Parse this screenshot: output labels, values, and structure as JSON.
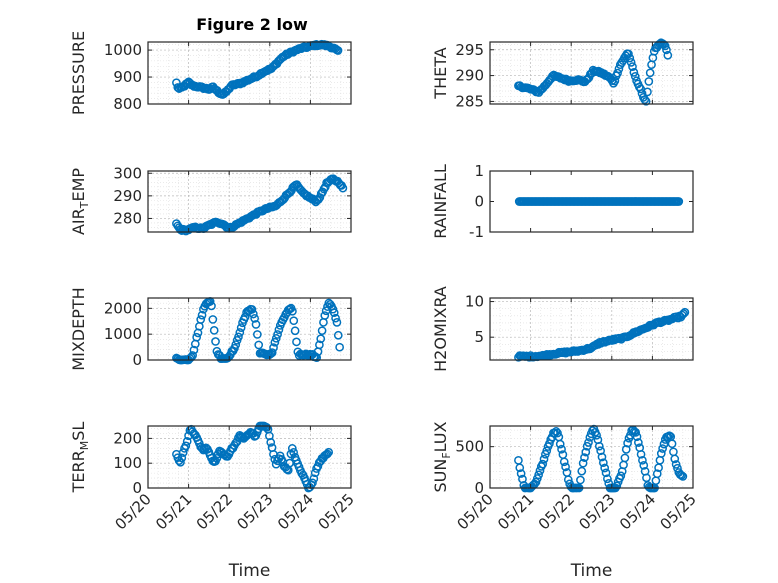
{
  "title": "Figure 2 low",
  "colors": {
    "marker": "#0072bd",
    "axes": "#262626",
    "grid": "#b8b8b8"
  },
  "chart_data": [
    {
      "type": "scatter",
      "name": "pressure",
      "xlabel": "",
      "ylabel": "PRESSURE",
      "x_unit": "days since 05/20",
      "xlim": [
        0,
        5
      ],
      "ylim": [
        800,
        1030
      ],
      "yticks": [
        800,
        900,
        1000
      ],
      "ytick_labels": [
        "800",
        "900",
        "1000"
      ],
      "xtick_labels": [],
      "grid": true,
      "keys": [
        [
          0.7,
          878
        ],
        [
          0.75,
          855
        ],
        [
          0.85,
          862
        ],
        [
          1.0,
          880
        ],
        [
          1.1,
          868
        ],
        [
          1.3,
          862
        ],
        [
          1.5,
          855
        ],
        [
          1.6,
          862
        ],
        [
          1.75,
          842
        ],
        [
          1.85,
          835
        ],
        [
          1.95,
          848
        ],
        [
          2.05,
          868
        ],
        [
          2.3,
          878
        ],
        [
          2.55,
          895
        ],
        [
          2.7,
          905
        ],
        [
          2.85,
          920
        ],
        [
          3.05,
          932
        ],
        [
          3.25,
          965
        ],
        [
          3.35,
          978
        ],
        [
          3.5,
          990
        ],
        [
          3.65,
          1000
        ],
        [
          3.8,
          1008
        ],
        [
          3.95,
          1012
        ],
        [
          4.1,
          1018
        ],
        [
          4.3,
          1020
        ],
        [
          4.45,
          1015
        ],
        [
          4.6,
          1005
        ],
        [
          4.68,
          995
        ]
      ]
    },
    {
      "type": "scatter",
      "name": "theta",
      "xlabel": "",
      "ylabel": "THETA",
      "x_unit": "days since 05/20",
      "xlim": [
        0,
        5
      ],
      "ylim": [
        284.5,
        296.5
      ],
      "yticks": [
        285,
        290,
        295
      ],
      "ytick_labels": [
        "285",
        "290",
        "295"
      ],
      "xtick_labels": [],
      "grid": true,
      "keys": [
        [
          0.7,
          288
        ],
        [
          0.95,
          287.5
        ],
        [
          1.2,
          286.8
        ],
        [
          1.35,
          288
        ],
        [
          1.55,
          290
        ],
        [
          1.75,
          289.5
        ],
        [
          1.95,
          289
        ],
        [
          2.15,
          289.2
        ],
        [
          2.35,
          288.8
        ],
        [
          2.55,
          291
        ],
        [
          2.75,
          290.5
        ],
        [
          2.95,
          289.6
        ],
        [
          3.05,
          288.5
        ],
        [
          3.2,
          292
        ],
        [
          3.4,
          294.5
        ],
        [
          3.5,
          292
        ],
        [
          3.6,
          289
        ],
        [
          3.7,
          287.5
        ],
        [
          3.8,
          285.5
        ],
        [
          3.85,
          285
        ],
        [
          3.95,
          291
        ],
        [
          4.05,
          295
        ],
        [
          4.2,
          296.2
        ],
        [
          4.3,
          296
        ],
        [
          4.38,
          294
        ]
      ]
    },
    {
      "type": "scatter",
      "name": "air_temp",
      "xlabel": "",
      "ylabel": "AIR_TEMP",
      "x_unit": "days since 05/20",
      "xlim": [
        0,
        5
      ],
      "ylim": [
        274,
        301
      ],
      "yticks": [
        280,
        290,
        300
      ],
      "ytick_labels": [
        "280",
        "290",
        "300"
      ],
      "xtick_labels": [],
      "grid": true,
      "keys": [
        [
          0.7,
          277.5
        ],
        [
          0.8,
          275
        ],
        [
          0.95,
          274.8
        ],
        [
          1.15,
          276
        ],
        [
          1.35,
          275.5
        ],
        [
          1.5,
          277
        ],
        [
          1.7,
          278.5
        ],
        [
          1.85,
          277.5
        ],
        [
          2.0,
          275.5
        ],
        [
          2.15,
          277
        ],
        [
          2.35,
          279
        ],
        [
          2.55,
          281
        ],
        [
          2.75,
          283
        ],
        [
          2.95,
          284.5
        ],
        [
          3.15,
          285.5
        ],
        [
          3.35,
          289
        ],
        [
          3.5,
          292
        ],
        [
          3.65,
          295
        ],
        [
          3.8,
          291.5
        ],
        [
          4.0,
          289
        ],
        [
          4.15,
          287.5
        ],
        [
          4.25,
          290
        ],
        [
          4.4,
          295.5
        ],
        [
          4.55,
          297.5
        ],
        [
          4.7,
          296
        ],
        [
          4.8,
          293.5
        ]
      ]
    },
    {
      "type": "scatter",
      "name": "rainfall",
      "xlabel": "",
      "ylabel": "RAINFALL",
      "x_unit": "days since 05/20",
      "xlim": [
        0,
        5
      ],
      "ylim": [
        -1,
        1
      ],
      "yticks": [
        -1,
        0,
        1
      ],
      "ytick_labels": [
        "-1",
        "0",
        "1"
      ],
      "xtick_labels": [],
      "grid": false,
      "keys": [
        [
          0.72,
          0
        ],
        [
          4.65,
          0
        ]
      ]
    },
    {
      "type": "scatter",
      "name": "mixdepth",
      "xlabel": "",
      "ylabel": "MIXDEPTH",
      "x_unit": "days since 05/20",
      "xlim": [
        0,
        5
      ],
      "ylim": [
        0,
        2400
      ],
      "yticks": [
        0,
        1000,
        2000
      ],
      "ytick_labels": [
        "0",
        "1000",
        "2000"
      ],
      "xtick_labels": [],
      "grid": true,
      "keys": [
        [
          0.7,
          50
        ],
        [
          0.85,
          0
        ],
        [
          1.0,
          20
        ],
        [
          1.1,
          200
        ],
        [
          1.25,
          1200
        ],
        [
          1.35,
          1900
        ],
        [
          1.45,
          2250
        ],
        [
          1.55,
          2300
        ],
        [
          1.6,
          1500
        ],
        [
          1.7,
          300
        ],
        [
          1.8,
          80
        ],
        [
          1.95,
          60
        ],
        [
          2.15,
          500
        ],
        [
          2.3,
          1300
        ],
        [
          2.45,
          1900
        ],
        [
          2.55,
          2000
        ],
        [
          2.65,
          1500
        ],
        [
          2.75,
          300
        ],
        [
          2.9,
          200
        ],
        [
          3.05,
          250
        ],
        [
          3.15,
          800
        ],
        [
          3.3,
          1500
        ],
        [
          3.45,
          1900
        ],
        [
          3.55,
          2000
        ],
        [
          3.65,
          800
        ],
        [
          3.7,
          200
        ],
        [
          3.85,
          220
        ],
        [
          4.05,
          200
        ],
        [
          4.15,
          60
        ],
        [
          4.25,
          800
        ],
        [
          4.35,
          1700
        ],
        [
          4.45,
          2200
        ],
        [
          4.55,
          2000
        ],
        [
          4.65,
          1500
        ],
        [
          4.72,
          500
        ]
      ]
    },
    {
      "type": "scatter",
      "name": "h2omixra",
      "xlabel": "",
      "ylabel": "H2OMIXRA",
      "x_unit": "days since 05/20",
      "xlim": [
        0,
        5
      ],
      "ylim": [
        1.8,
        10.5
      ],
      "yticks": [
        5,
        10
      ],
      "ytick_labels": [
        "5",
        "10"
      ],
      "xtick_labels": [],
      "grid": true,
      "keys": [
        [
          0.7,
          2.3
        ],
        [
          1.0,
          2.3
        ],
        [
          1.3,
          2.4
        ],
        [
          1.6,
          2.7
        ],
        [
          1.9,
          2.9
        ],
        [
          2.2,
          3.1
        ],
        [
          2.5,
          3.5
        ],
        [
          2.7,
          4.2
        ],
        [
          3.0,
          4.6
        ],
        [
          3.3,
          4.9
        ],
        [
          3.55,
          5.6
        ],
        [
          3.75,
          6.1
        ],
        [
          3.95,
          6.6
        ],
        [
          4.15,
          7.1
        ],
        [
          4.35,
          7.3
        ],
        [
          4.55,
          7.7
        ],
        [
          4.7,
          7.9
        ],
        [
          4.8,
          8.4
        ]
      ]
    },
    {
      "type": "scatter",
      "name": "terr_msl",
      "xlabel": "Time",
      "ylabel": "TERR_MSL",
      "x_unit": "days since 05/20",
      "xlim": [
        0,
        5
      ],
      "ylim": [
        0,
        250
      ],
      "yticks": [
        0,
        100,
        200
      ],
      "ytick_labels": [
        "0",
        "100",
        "200"
      ],
      "xtick_labels": [
        "05/20",
        "05/21",
        "05/22",
        "05/23",
        "05/24",
        "05/25"
      ],
      "grid": true,
      "keys": [
        [
          0.7,
          135
        ],
        [
          0.8,
          100
        ],
        [
          0.88,
          150
        ],
        [
          0.95,
          180
        ],
        [
          1.05,
          240
        ],
        [
          1.15,
          215
        ],
        [
          1.25,
          185
        ],
        [
          1.35,
          150
        ],
        [
          1.45,
          165
        ],
        [
          1.55,
          120
        ],
        [
          1.65,
          100
        ],
        [
          1.75,
          150
        ],
        [
          1.85,
          140
        ],
        [
          1.95,
          125
        ],
        [
          2.05,
          155
        ],
        [
          2.15,
          175
        ],
        [
          2.25,
          210
        ],
        [
          2.35,
          200
        ],
        [
          2.45,
          215
        ],
        [
          2.55,
          225
        ],
        [
          2.65,
          205
        ],
        [
          2.75,
          250
        ],
        [
          2.85,
          250
        ],
        [
          2.95,
          245
        ],
        [
          3.05,
          165
        ],
        [
          3.15,
          95
        ],
        [
          3.25,
          130
        ],
        [
          3.35,
          90
        ],
        [
          3.45,
          70
        ],
        [
          3.55,
          160
        ],
        [
          3.65,
          110
        ],
        [
          3.75,
          70
        ],
        [
          3.85,
          40
        ],
        [
          3.95,
          0
        ],
        [
          4.05,
          20
        ],
        [
          4.15,
          80
        ],
        [
          4.25,
          110
        ],
        [
          4.35,
          130
        ],
        [
          4.45,
          145
        ]
      ]
    },
    {
      "type": "scatter",
      "name": "sun_flux",
      "xlabel": "Time",
      "ylabel": "SUN_FLUX",
      "x_unit": "days since 05/20",
      "xlim": [
        0,
        5
      ],
      "ylim": [
        0,
        750
      ],
      "yticks": [
        0,
        500
      ],
      "ytick_labels": [
        "0",
        "500"
      ],
      "xtick_labels": [
        "05/20",
        "05/21",
        "05/22",
        "05/23",
        "05/24",
        "05/25"
      ],
      "grid": true,
      "keys": [
        [
          0.7,
          330
        ],
        [
          0.78,
          150
        ],
        [
          0.85,
          0
        ],
        [
          1.0,
          0
        ],
        [
          1.12,
          60
        ],
        [
          1.3,
          300
        ],
        [
          1.45,
          530
        ],
        [
          1.55,
          650
        ],
        [
          1.65,
          700
        ],
        [
          1.75,
          500
        ],
        [
          1.85,
          280
        ],
        [
          1.95,
          60
        ],
        [
          2.0,
          0
        ],
        [
          2.2,
          0
        ],
        [
          2.3,
          330
        ],
        [
          2.45,
          600
        ],
        [
          2.55,
          720
        ],
        [
          2.65,
          600
        ],
        [
          2.8,
          300
        ],
        [
          2.95,
          0
        ],
        [
          3.1,
          0
        ],
        [
          3.25,
          180
        ],
        [
          3.4,
          580
        ],
        [
          3.5,
          700
        ],
        [
          3.6,
          680
        ],
        [
          3.7,
          450
        ],
        [
          3.8,
          250
        ],
        [
          3.9,
          0
        ],
        [
          4.05,
          0
        ],
        [
          4.15,
          250
        ],
        [
          4.25,
          480
        ],
        [
          4.35,
          620
        ],
        [
          4.45,
          630
        ],
        [
          4.55,
          350
        ],
        [
          4.65,
          180
        ],
        [
          4.75,
          150
        ]
      ]
    }
  ]
}
